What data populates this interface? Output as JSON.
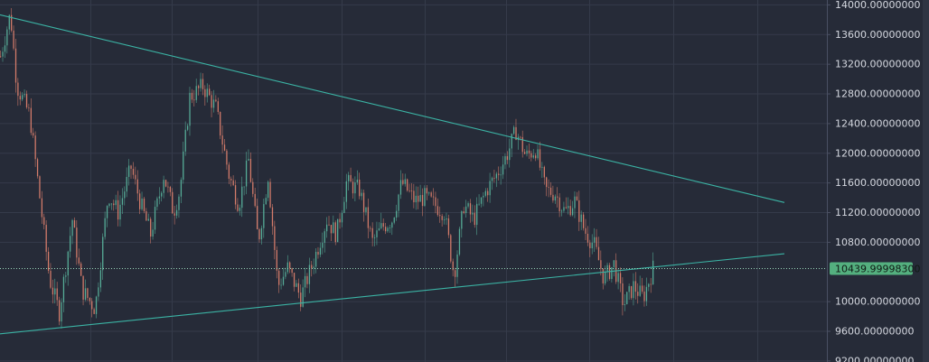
{
  "chart_data": {
    "type": "candlestick",
    "axis": {
      "y_ticks": [
        "14000.00000000",
        "13600.00000000",
        "13200.00000000",
        "12800.00000000",
        "12400.00000000",
        "12000.00000000",
        "11600.00000000",
        "11200.00000000",
        "10800.00000000",
        "10000.00000000",
        "9600.00000000",
        "9200.00000000"
      ],
      "ylim": [
        9180,
        14060
      ],
      "grid": true
    },
    "last_price": {
      "label": "10439.99998300",
      "value": 10439.999983
    },
    "trendlines": [
      {
        "name": "upper",
        "x": [
          0.0,
          1.0
        ],
        "y": [
          13860,
          11330
        ]
      },
      {
        "name": "lower",
        "x": [
          0.0,
          1.0
        ],
        "y": [
          9560,
          10640
        ]
      }
    ],
    "price_path": {
      "x": [
        0.0,
        0.015,
        0.025,
        0.045,
        0.06,
        0.075,
        0.09,
        0.11,
        0.125,
        0.145,
        0.165,
        0.18,
        0.2,
        0.215,
        0.23,
        0.25,
        0.265,
        0.275,
        0.29,
        0.31,
        0.33,
        0.35,
        0.365,
        0.38,
        0.395,
        0.41,
        0.425,
        0.44,
        0.46,
        0.48,
        0.5,
        0.515,
        0.53,
        0.55,
        0.57,
        0.585,
        0.6,
        0.615,
        0.635,
        0.65,
        0.665,
        0.68,
        0.695,
        0.71,
        0.725,
        0.745,
        0.76,
        0.775,
        0.79,
        0.805,
        0.82,
        0.835,
        0.85,
        0.865,
        0.88,
        0.895,
        0.91,
        0.925,
        0.94,
        0.955,
        0.97,
        0.985,
        1.0
      ],
      "y": [
        13300,
        13880,
        12900,
        12500,
        11400,
        10300,
        9850,
        11100,
        10150,
        9900,
        11450,
        11200,
        11800,
        11300,
        10900,
        11700,
        11200,
        11500,
        12750,
        12900,
        12600,
        11700,
        11300,
        11900,
        10800,
        11700,
        10200,
        10450,
        10050,
        10550,
        11100,
        10900,
        11600,
        11500,
        10800,
        11000,
        11100,
        11600,
        11350,
        11400,
        11300,
        11200,
        10350,
        11300,
        11100,
        11500,
        11700,
        11950,
        12300,
        11950,
        12050,
        11500,
        11450,
        11200,
        11350,
        10950,
        10750,
        10300,
        10500,
        9950,
        10200,
        10050,
        10440
      ]
    },
    "colors": {
      "background": "#262b38",
      "grid": "#353b4a",
      "up": "#5ab7a0",
      "down": "#e3826f",
      "trendline": "#3bb3a4",
      "price_badge": "#54b07f"
    }
  }
}
